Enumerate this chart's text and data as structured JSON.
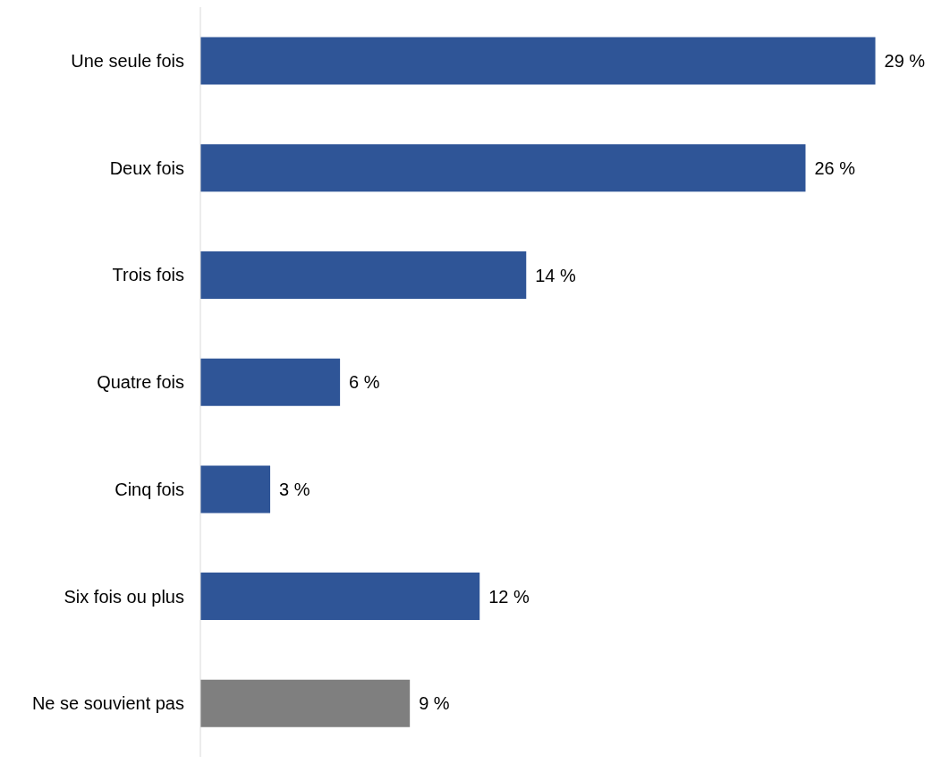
{
  "chart_data": {
    "type": "bar",
    "orientation": "horizontal",
    "categories": [
      "Une seule fois",
      "Deux fois",
      "Trois fois",
      "Quatre fois",
      "Cinq fois",
      "Six fois ou plus",
      "Ne se souvient pas"
    ],
    "values": [
      29,
      26,
      14,
      6,
      3,
      12,
      9
    ],
    "colors": [
      "#2f5597",
      "#2f5597",
      "#2f5597",
      "#2f5597",
      "#2f5597",
      "#2f5597",
      "#7f7f7f"
    ],
    "value_labels": [
      "29 %",
      "26 %",
      "14 %",
      "6 %",
      "3 %",
      "12 %",
      "9 %"
    ],
    "grid": false,
    "legend": false
  }
}
